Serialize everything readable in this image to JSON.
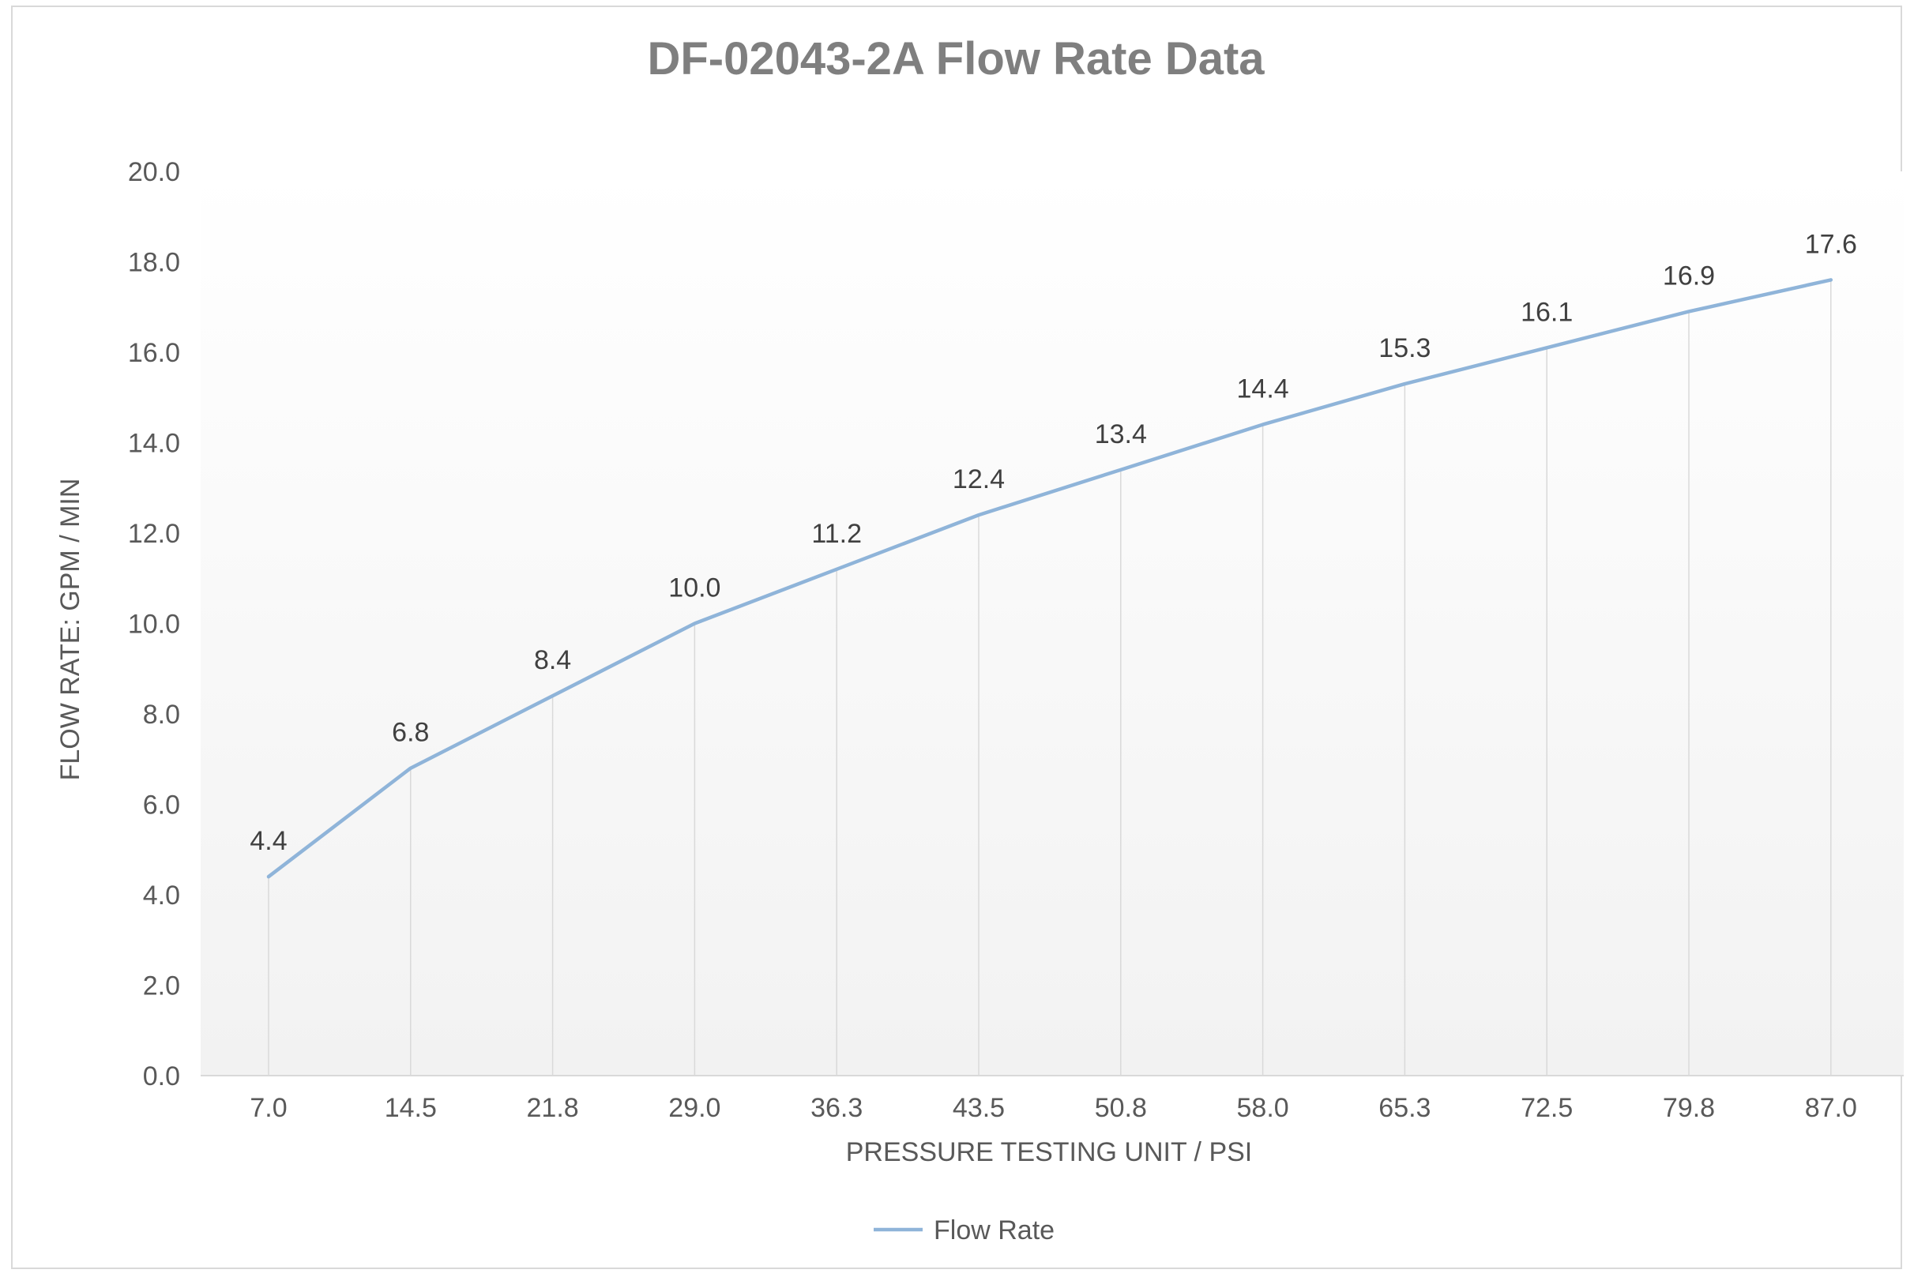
{
  "chart_data": {
    "type": "line",
    "title": "DF-02043-2A Flow Rate Data",
    "xlabel": "PRESSURE TESTING UNIT / PSI",
    "ylabel": "FLOW RATE: GPM / MIN",
    "categories": [
      "7.0",
      "14.5",
      "21.8",
      "29.0",
      "36.3",
      "43.5",
      "50.8",
      "58.0",
      "65.3",
      "72.5",
      "79.8",
      "87.0"
    ],
    "series": [
      {
        "name": "Flow Rate",
        "values": [
          4.4,
          6.8,
          8.4,
          10.0,
          11.2,
          12.4,
          13.4,
          14.4,
          15.3,
          16.1,
          16.9,
          17.6
        ],
        "labels": [
          "4.4",
          "6.8",
          "8.4",
          "10.0",
          "11.2",
          "12.4",
          "13.4",
          "14.4",
          "15.3",
          "16.1",
          "16.9",
          "17.6"
        ],
        "color": "#8fb4d9"
      }
    ],
    "ylim": [
      0,
      20
    ],
    "y_ticks": [
      "0.0",
      "2.0",
      "4.0",
      "6.0",
      "8.0",
      "10.0",
      "12.0",
      "14.0",
      "16.0",
      "18.0",
      "20.0"
    ],
    "grid": "vertical drop lines",
    "legend": "bottom-center",
    "colors": {
      "title": "#7f7f7f",
      "text": "#595959",
      "line": "#8fb4d9",
      "gridline": "#d9d9d9",
      "plot_gradient_top": "#ffffff",
      "plot_gradient_bottom": "#f2f2f2"
    }
  }
}
